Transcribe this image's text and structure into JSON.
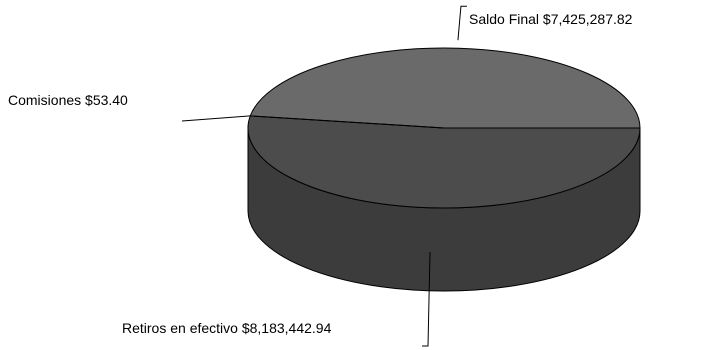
{
  "chart_data": {
    "type": "pie",
    "three_d": true,
    "legend": "none",
    "slices": [
      {
        "category": "Saldo Final",
        "value": 7425287.82,
        "label": "Saldo Final $7,425,287.82"
      },
      {
        "category": "Retiros en efectivo",
        "value": 8183442.94,
        "label": "Retiros en efectivo $8,183,442.94"
      },
      {
        "category": "Comisiones",
        "value": 53.4,
        "label": "Comisiones $53.40"
      }
    ]
  },
  "colors": {
    "saldo_top": "#6a6a6a",
    "retiros_top": "#4c4c4c",
    "side": "#3c3c3c",
    "outline": "#000000"
  }
}
